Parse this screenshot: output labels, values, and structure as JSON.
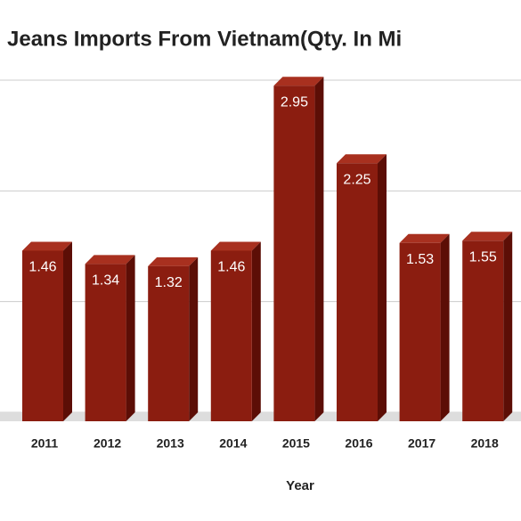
{
  "chart_data": {
    "type": "bar",
    "title": "Jeans Imports From Vietnam(Qty. In Mi",
    "x_label": "Year",
    "categories": [
      "2011",
      "2012",
      "2013",
      "2014",
      "2015",
      "2016",
      "2017",
      "2018"
    ],
    "values": [
      1.46,
      1.34,
      1.32,
      1.46,
      2.95,
      2.25,
      1.53,
      1.55
    ],
    "color": "#8b1d10",
    "ylim": [
      0,
      3
    ],
    "yticks": [
      0,
      1,
      2,
      3
    ],
    "grid": true
  }
}
